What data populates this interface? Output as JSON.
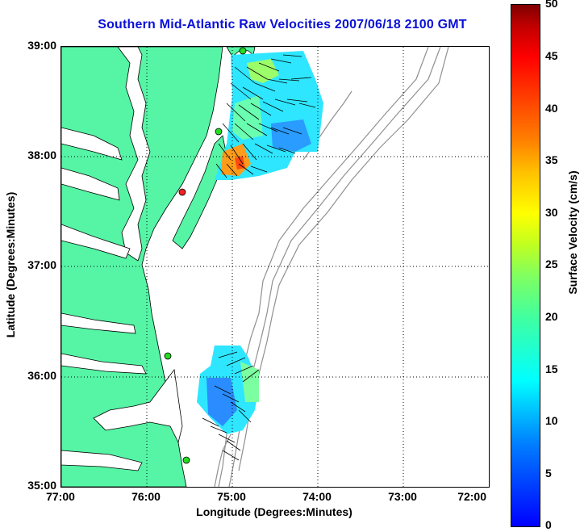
{
  "title": "Southern Mid-Atlantic Raw Velocities 2007/06/18 2100 GMT",
  "axes": {
    "xlabel": "Longitude (Degrees:Minutes)",
    "ylabel": "Latitude (Degrees:Minutes)",
    "x_ticks": [
      "77:00",
      "76:00",
      "75:00",
      "74:00",
      "73:00",
      "72:00"
    ],
    "y_ticks": [
      "39:00",
      "38:00",
      "37:00",
      "36:00",
      "35:00"
    ],
    "x_range": [
      -77,
      -72
    ],
    "y_range": [
      35,
      39
    ],
    "grid": "dotted"
  },
  "colorbar": {
    "label": "Surface Velocity (cm/s)",
    "ticks": [
      "50",
      "45",
      "40",
      "35",
      "30",
      "25",
      "20",
      "15",
      "10",
      "5",
      "0"
    ],
    "range": [
      0,
      50
    ],
    "colormap": "jet"
  },
  "colors": {
    "land": "#55f5a5",
    "title": "#0a10d8",
    "bathymetry": "#909090"
  }
}
